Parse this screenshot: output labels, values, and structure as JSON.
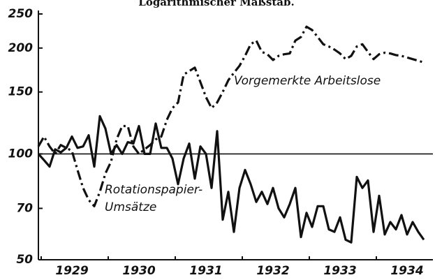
{
  "chart_data": {
    "type": "line",
    "title": "Logarithmischer Maßstab.",
    "log_scale": true,
    "ylim": [
      50,
      250
    ],
    "yticks": [
      50,
      70,
      100,
      150,
      200,
      250
    ],
    "hline": 100,
    "xlim": [
      0,
      70
    ],
    "xticks": [
      {
        "value": 6,
        "label": "1929"
      },
      {
        "value": 18,
        "label": "1930"
      },
      {
        "value": 30,
        "label": "1931"
      },
      {
        "value": 42,
        "label": "1932"
      },
      {
        "value": 54,
        "label": "1933"
      },
      {
        "value": 66,
        "label": "1934"
      }
    ],
    "x": [
      0,
      1,
      2,
      3,
      4,
      5,
      6,
      7,
      8,
      9,
      10,
      11,
      12,
      13,
      14,
      15,
      16,
      17,
      18,
      19,
      20,
      21,
      22,
      23,
      24,
      25,
      26,
      27,
      28,
      29,
      30,
      31,
      32,
      33,
      34,
      35,
      36,
      37,
      38,
      39,
      40,
      41,
      42,
      43,
      44,
      45,
      46,
      47,
      48,
      49,
      50,
      51,
      52,
      53,
      54,
      55,
      56,
      57,
      58,
      59,
      60,
      61,
      62,
      63,
      64,
      65,
      66,
      67,
      68,
      69
    ],
    "series": [
      {
        "label_lines": [
          "Vorgemerkte Arbeitslose"
        ],
        "style": "dashdot",
        "color": "#111",
        "values": [
          105,
          112,
          105,
          100,
          106,
          104,
          102,
          90,
          80,
          74,
          71,
          78,
          88,
          95,
          110,
          120,
          120,
          105,
          100,
          103,
          106,
          110,
          112,
          125,
          135,
          140,
          168,
          172,
          176,
          160,
          145,
          135,
          140,
          150,
          162,
          170,
          178,
          190,
          205,
          210,
          195,
          192,
          185,
          190,
          192,
          193,
          210,
          215,
          230,
          225,
          215,
          205,
          202,
          198,
          193,
          186,
          190,
          202,
          205,
          195,
          186,
          192,
          194,
          193,
          191,
          190,
          188,
          186,
          184,
          182
        ]
      },
      {
        "label_lines": [
          "Rotationspapier-",
          "Umsätze"
        ],
        "style": "solid",
        "color": "#111",
        "values": [
          100,
          96,
          92,
          103,
          101,
          104,
          112,
          104,
          105,
          113,
          92,
          128,
          118,
          100,
          106,
          100,
          108,
          107,
          120,
          100,
          100,
          122,
          104,
          104,
          97,
          82,
          97,
          107,
          85,
          105,
          100,
          80,
          116,
          65,
          78,
          60,
          80,
          90,
          82,
          73,
          78,
          72,
          80,
          70,
          66,
          72,
          80,
          58,
          68,
          62,
          71,
          71,
          61,
          60,
          66,
          57,
          56,
          86,
          80,
          84,
          60,
          76,
          59,
          64,
          61,
          67,
          59,
          64,
          60,
          57
        ]
      }
    ]
  }
}
